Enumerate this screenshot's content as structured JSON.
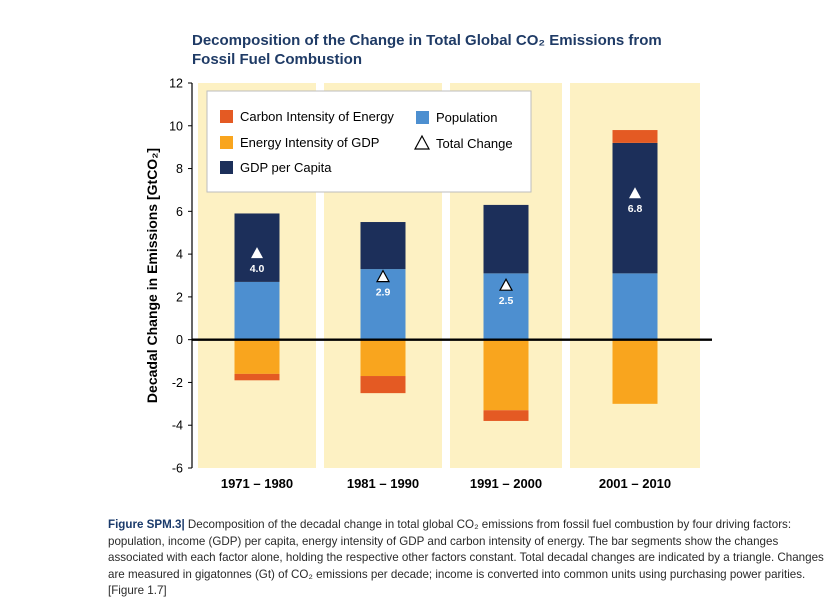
{
  "colors": {
    "panel_bg": "#fdf1c3",
    "carbon_intensity": "#e45a23",
    "energy_intensity": "#f9a51e",
    "gdp_per_capita": "#1c2f5a",
    "population": "#4d8fd0",
    "title": "#1f3b66",
    "caption_label": "#1a3a6b"
  },
  "chart_data": {
    "type": "bar",
    "title": "Decomposition of the Change in Total Global CO₂ Emissions from Fossil Fuel Combustion",
    "title_lines": [
      "Decomposition of the Change in Total Global CO₂ Emissions from",
      "Fossil Fuel Combustion"
    ],
    "ylabel": "Decadal Change in Emissions [GtCO₂]",
    "xlabel": "",
    "ylim": [
      -6,
      12
    ],
    "yticks": [
      -6,
      -4,
      -2,
      0,
      2,
      4,
      6,
      8,
      10,
      12
    ],
    "stacked": true,
    "categories": [
      "1971 – 1980",
      "1981 – 1990",
      "1991 – 2000",
      "2001 – 2010"
    ],
    "series": [
      {
        "name": "Carbon Intensity of Energy",
        "values": [
          -0.3,
          -0.8,
          -0.5,
          0.6
        ]
      },
      {
        "name": "Energy Intensity of GDP",
        "values": [
          -1.6,
          -1.7,
          -3.3,
          -3.0
        ]
      },
      {
        "name": "GDP per Capita",
        "values": [
          3.2,
          2.2,
          3.2,
          6.1
        ]
      },
      {
        "name": "Population",
        "values": [
          2.7,
          3.3,
          3.1,
          3.1
        ]
      }
    ],
    "total_change": {
      "name": "Total Change",
      "values": [
        4.0,
        2.9,
        2.5,
        6.8
      ],
      "labels": [
        "4.0",
        "2.9",
        "2.5",
        "6.8"
      ]
    },
    "legend": {
      "placement": "top",
      "entries": [
        {
          "label": "Carbon Intensity of Energy",
          "symbol": "square",
          "color": "#e45a23"
        },
        {
          "label": "Energy Intensity of GDP",
          "symbol": "square",
          "color": "#f9a51e"
        },
        {
          "label": "GDP per Capita",
          "symbol": "square",
          "color": "#1c2f5a"
        },
        {
          "label": "Population",
          "symbol": "square",
          "color": "#4d8fd0"
        },
        {
          "label": "Total Change",
          "symbol": "triangle",
          "color": "#000000"
        }
      ]
    },
    "grid": false
  },
  "caption": {
    "label": "Figure SPM.3|",
    "text": " Decomposition of the decadal change in total global CO₂ emissions from fossil fuel combustion by four driving factors: population, income (GDP) per capita, energy intensity of GDP and carbon intensity of energy. The bar segments show the changes associated with each factor alone, holding the respective other factors constant. Total decadal changes are indicated by a triangle. Changes are measured in gigatonnes (Gt) of CO₂ emissions per decade; income is converted into common units using purchasing power parities. [Figure 1.7]"
  }
}
